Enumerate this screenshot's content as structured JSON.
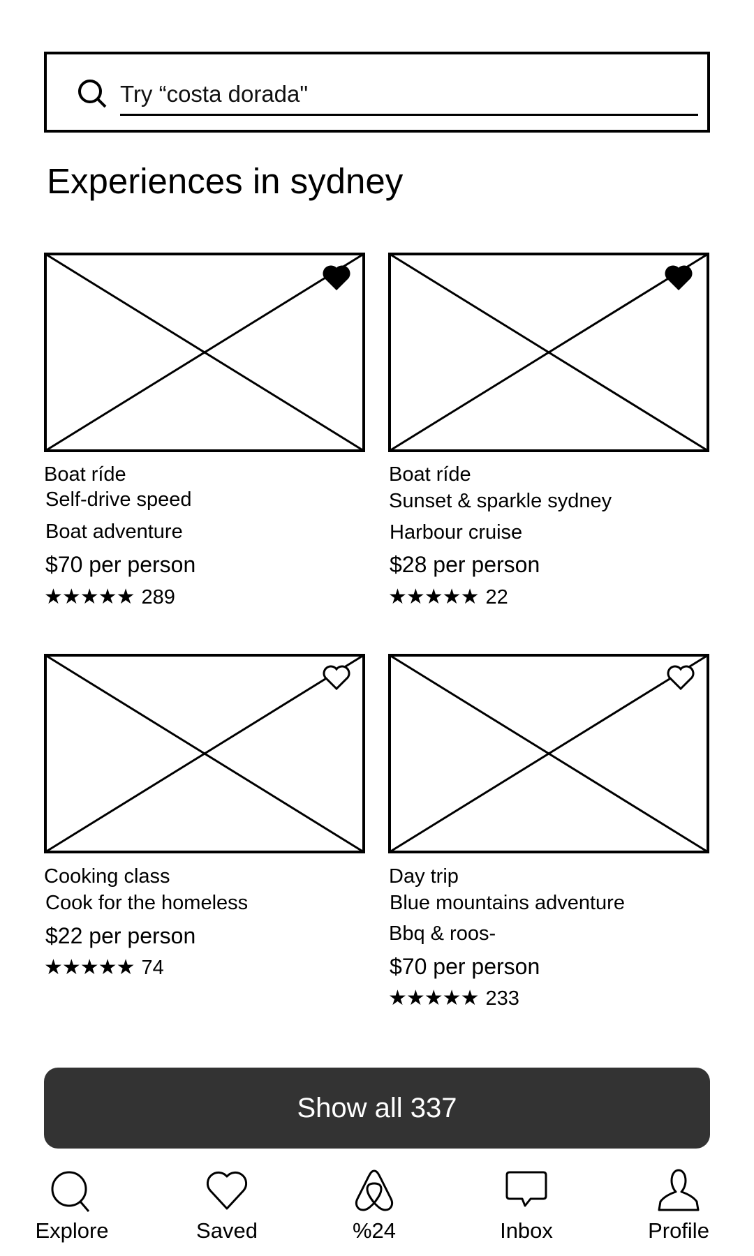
{
  "search": {
    "placeholder": "Try “costa dorada\"",
    "icon": "search-icon"
  },
  "page_title": "Experiences in sydney",
  "cards": [
    {
      "category": "Boat ríde",
      "title_line1": "Self-drive speed",
      "title_line2": "Boat adventure",
      "price": "$70 per person",
      "stars": "★★★★★",
      "reviews": "289",
      "saved": true
    },
    {
      "category": "Boat ríde",
      "title_line1": "Sunset & sparkle sydney",
      "title_line2": "Harbour cruise",
      "price": "$28 per person",
      "stars": "★★★★★",
      "reviews": "22",
      "saved": true
    },
    {
      "category": "Cooking class",
      "title_line1": "Cook for the homeless",
      "price": "$22 per person",
      "stars": "★★★★★",
      "reviews": "74",
      "saved": false
    },
    {
      "category": "Day trip",
      "title_line1": "Blue mountains adventure",
      "title_line2": "Bbq & roos-",
      "price": "$70 per person",
      "stars": "★★★★★",
      "reviews": "233",
      "saved": false
    }
  ],
  "show_all_label": "Show all 337",
  "show_all_color": "#333333",
  "nav": [
    {
      "label": "Explore",
      "icon": "search-icon"
    },
    {
      "label": "Saved",
      "icon": "heart-icon"
    },
    {
      "label": "%24",
      "icon": "airbnb-logo-icon"
    },
    {
      "label": "Inbox",
      "icon": "chat-bubble-icon"
    },
    {
      "label": "Profile",
      "icon": "user-icon"
    }
  ]
}
